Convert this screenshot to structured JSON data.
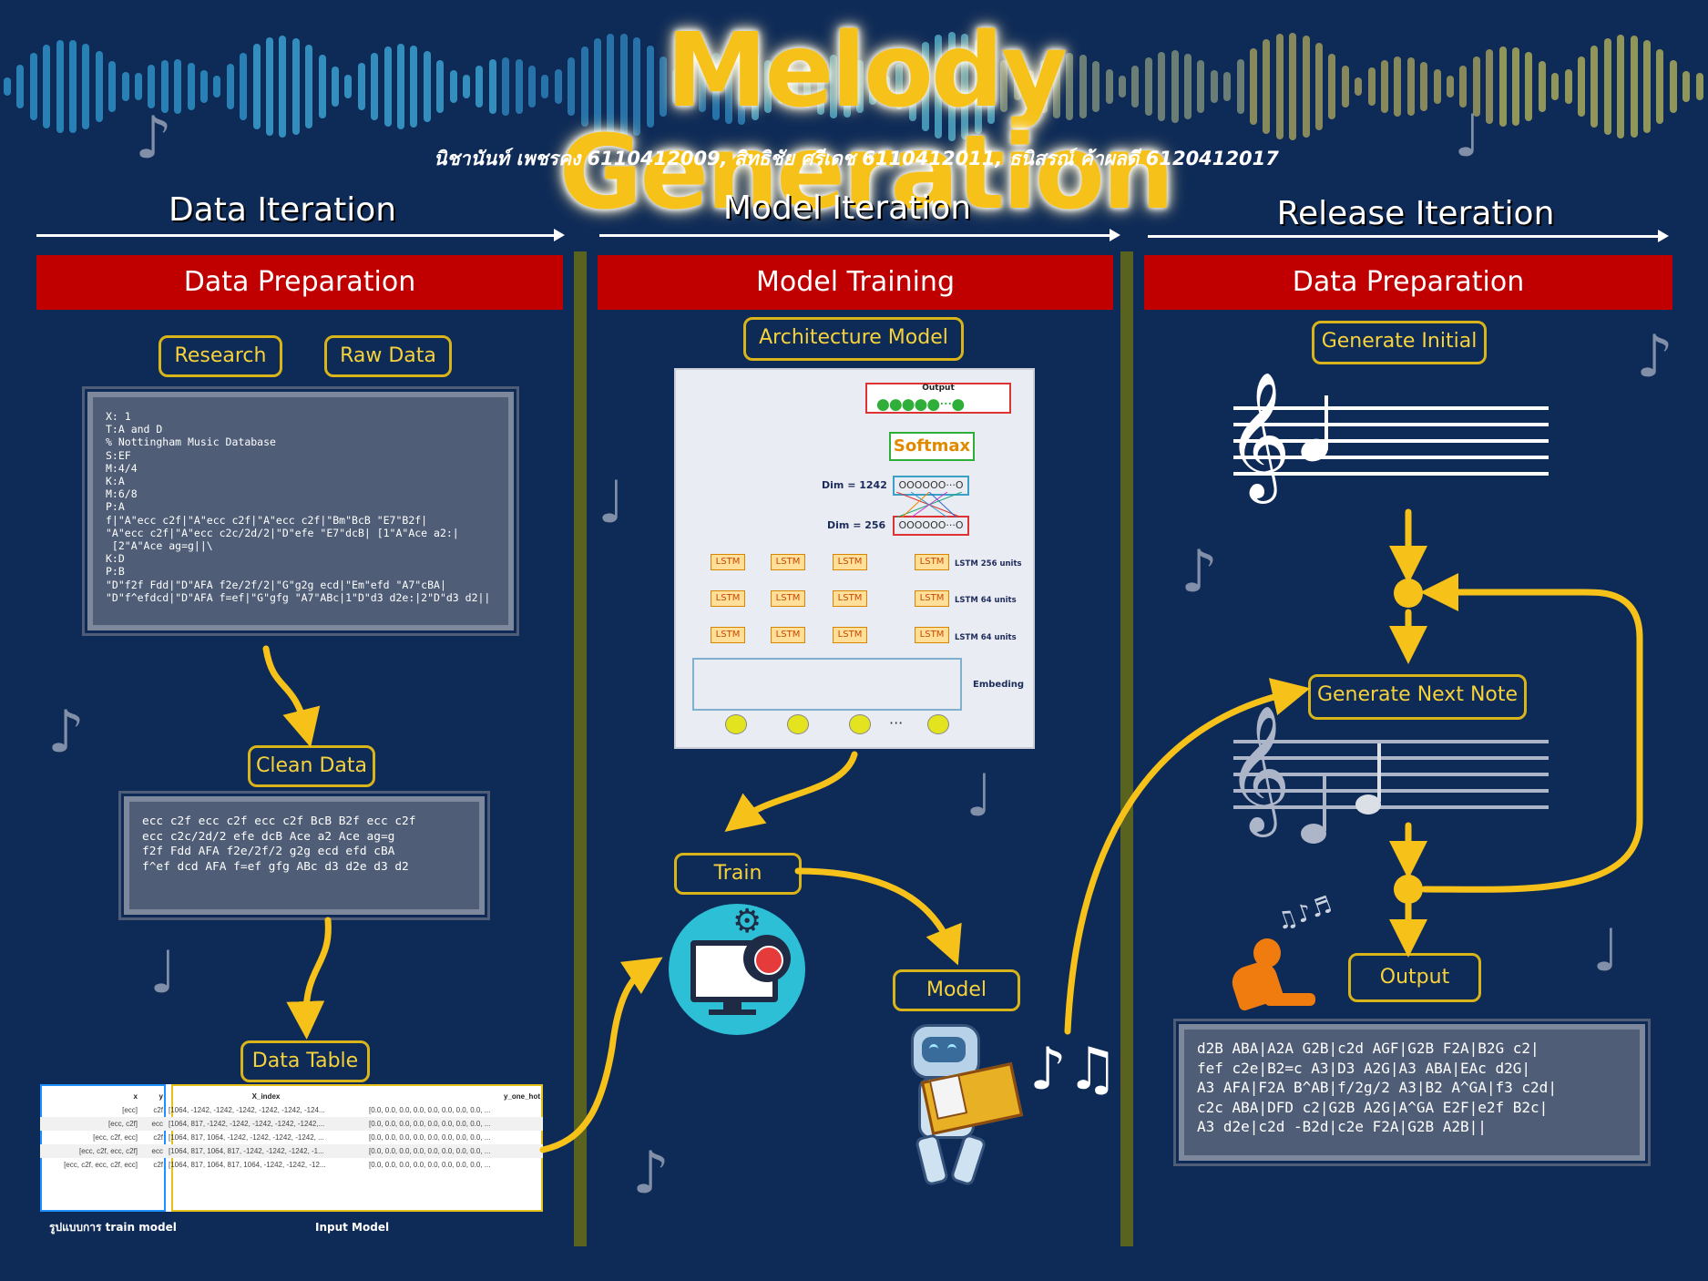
{
  "header": {
    "title": "Melody Generation",
    "authors": "นิชานันท์ เพชรคง 6110412009, สิทธิชัย ศรีเดช 6110412011, ธนิสรณ์ ค้าผลดี 6120412017"
  },
  "stages": [
    {
      "title": "Data Iteration",
      "banner": "Data Preparation"
    },
    {
      "title": "Model Iteration",
      "banner": "Model Training"
    },
    {
      "title": "Release Iteration",
      "banner": "Data Preparation"
    }
  ],
  "data_col": {
    "research": "Research",
    "raw_data": "Raw Data",
    "raw_lines": [
      "X: 1",
      "T:A and D",
      "% Nottingham Music Database",
      "S:EF",
      "M:4/4",
      "K:A",
      "M:6/8",
      "P:A",
      "f|\"A\"ecc c2f|\"A\"ecc c2f|\"A\"ecc c2f|\"Bm\"BcB \"E7\"B2f|",
      "\"A\"ecc c2f|\"A\"ecc c2c/2d/2|\"D\"efe \"E7\"dcB| [1\"A\"Ace a2:|",
      " [2\"A\"Ace ag=g||\\",
      "K:D",
      "P:B",
      "\"D\"f2f Fdd|\"D\"AFA f2e/2f/2|\"G\"g2g ecd|\"Em\"efd \"A7\"cBA|",
      "\"D\"f^efdcd|\"D\"AFA f=ef|\"G\"gfg \"A7\"ABc|1\"D\"d3 d2e:|2\"D\"d3 d2||"
    ],
    "clean_data": "Clean Data",
    "clean_lines": [
      "ecc c2f ecc c2f ecc c2f BcB B2f ecc c2f",
      "ecc c2c/2d/2 efe dcB Ace a2 Ace ag=g",
      "f2f Fdd AFA f2e/2f/2 g2g ecd efd cBA",
      "f^ef dcd AFA f=ef gfg ABc d3 d2e d3 d2"
    ],
    "data_table": "Data Table",
    "table_headers": {
      "x": "x",
      "y": "y",
      "x_index": "X_index",
      "y_one_hot": "y_one_hot"
    },
    "table_rows": [
      {
        "x": "[ecc]",
        "y": "c2f",
        "xi": "[1064, -1242, -1242, -1242, -1242, -1242, -124...",
        "yo": "[0.0, 0.0, 0.0, 0.0, 0.0, 0.0, 0.0, 0.0, ..."
      },
      {
        "x": "[ecc, c2f]",
        "y": "ecc",
        "xi": "[1064, 817, -1242, -1242, -1242, -1242, -1242,...",
        "yo": "[0.0, 0.0, 0.0, 0.0, 0.0, 0.0, 0.0, 0.0, ..."
      },
      {
        "x": "[ecc, c2f, ecc]",
        "y": "c2f",
        "xi": "[1064, 817, 1064, -1242, -1242, -1242, -1242, ...",
        "yo": "[0.0, 0.0, 0.0, 0.0, 0.0, 0.0, 0.0, 0.0, ..."
      },
      {
        "x": "[ecc, c2f, ecc, c2f]",
        "y": "ecc",
        "xi": "[1064, 817, 1064, 817, -1242, -1242, -1242, -1...",
        "yo": "[0.0, 0.0, 0.0, 0.0, 0.0, 0.0, 0.0, 0.0, ..."
      },
      {
        "x": "[ecc, c2f, ecc, c2f, ecc]",
        "y": "c2f",
        "xi": "[1064, 817, 1064, 817, 1064, -1242, -1242, -12...",
        "yo": "[0.0, 0.0, 0.0, 0.0, 0.0, 0.0, 0.0, 0.0, ..."
      }
    ],
    "table_caption_left": "รูปแบบการ train model",
    "table_caption_right": "Input Model"
  },
  "model_col": {
    "architecture": "Architecture Model",
    "output_label": "Output",
    "softmax": "Softmax",
    "dim1": "Dim = 1242",
    "dim2": "Dim = 256",
    "lstm": "LSTM",
    "lstm256": "LSTM 256 units",
    "lstm64a": "LSTM 64 units",
    "lstm64b": "LSTM 64 units",
    "embeding": "Embeding",
    "train": "Train",
    "model": "Model"
  },
  "release_col": {
    "generate_initial": "Generate Initial",
    "generate_next": "Generate Next Note",
    "output": "Output",
    "output_lines": [
      "d2B ABA|A2A G2B|c2d AGF|G2B F2A|B2G c2|",
      "fef c2e|B2=c A3|D3 A2G|A3 ABA|EAc d2G|",
      "A3 AFA|F2A B^AB|f/2g/2 A3|B2 A^GA|f3 c2d|",
      "c2c ABA|DFD c2|G2B A2G|A^GA E2F|e2f B2c|",
      "A3 d2e|c2d -B2d|c2e F2A|G2B A2B||"
    ]
  },
  "colors": {
    "accent": "#f6c21a",
    "banner": "#c00000",
    "background": "#0e2a57"
  }
}
